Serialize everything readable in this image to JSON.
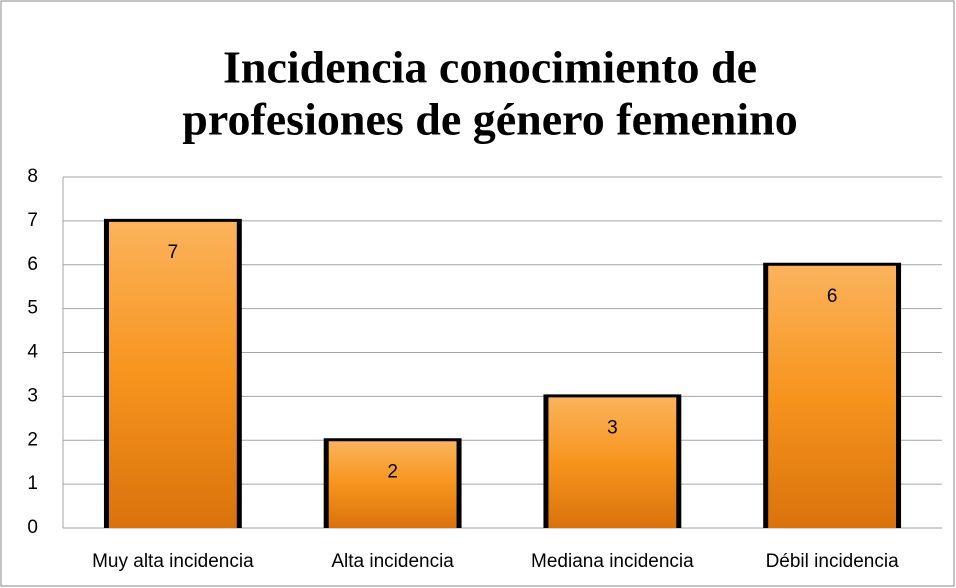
{
  "chart_data": {
    "type": "bar",
    "title": [
      "Incidencia conocimiento de",
      "profesiones de género femenino"
    ],
    "categories": [
      "Muy alta incidencia",
      "Alta incidencia",
      "Mediana incidencia",
      "Débil incidencia"
    ],
    "values": [
      7,
      2,
      3,
      6
    ],
    "color": "#f7941d",
    "ylim": [
      0,
      8
    ],
    "yticks": [
      0,
      1,
      2,
      3,
      4,
      5,
      6,
      7,
      8
    ],
    "grid": true
  }
}
